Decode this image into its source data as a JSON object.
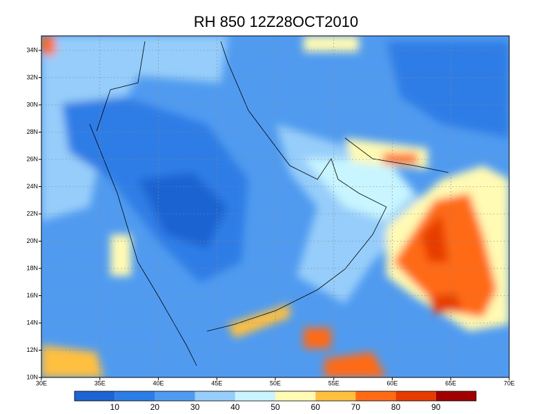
{
  "title": "RH 850 12Z28OCT2010",
  "lat_labels": [
    "10N",
    "12N",
    "14N",
    "16N",
    "18N",
    "20N",
    "22N",
    "24N",
    "26N",
    "28N",
    "30N",
    "32N",
    "34N"
  ],
  "lon_labels": [
    "30E",
    "35E",
    "40E",
    "45E",
    "50E",
    "55E",
    "60E",
    "65E",
    "70E"
  ],
  "colorbar": {
    "colors": [
      "#1e64d2",
      "#2d7de6",
      "#509bf0",
      "#96cdfa",
      "#c8f5ff",
      "#fffab4",
      "#ffc040",
      "#ff6a14",
      "#e63c00",
      "#a00000"
    ],
    "labels": [
      "10",
      "20",
      "30",
      "40",
      "50",
      "60",
      "70",
      "80",
      "90"
    ]
  }
}
